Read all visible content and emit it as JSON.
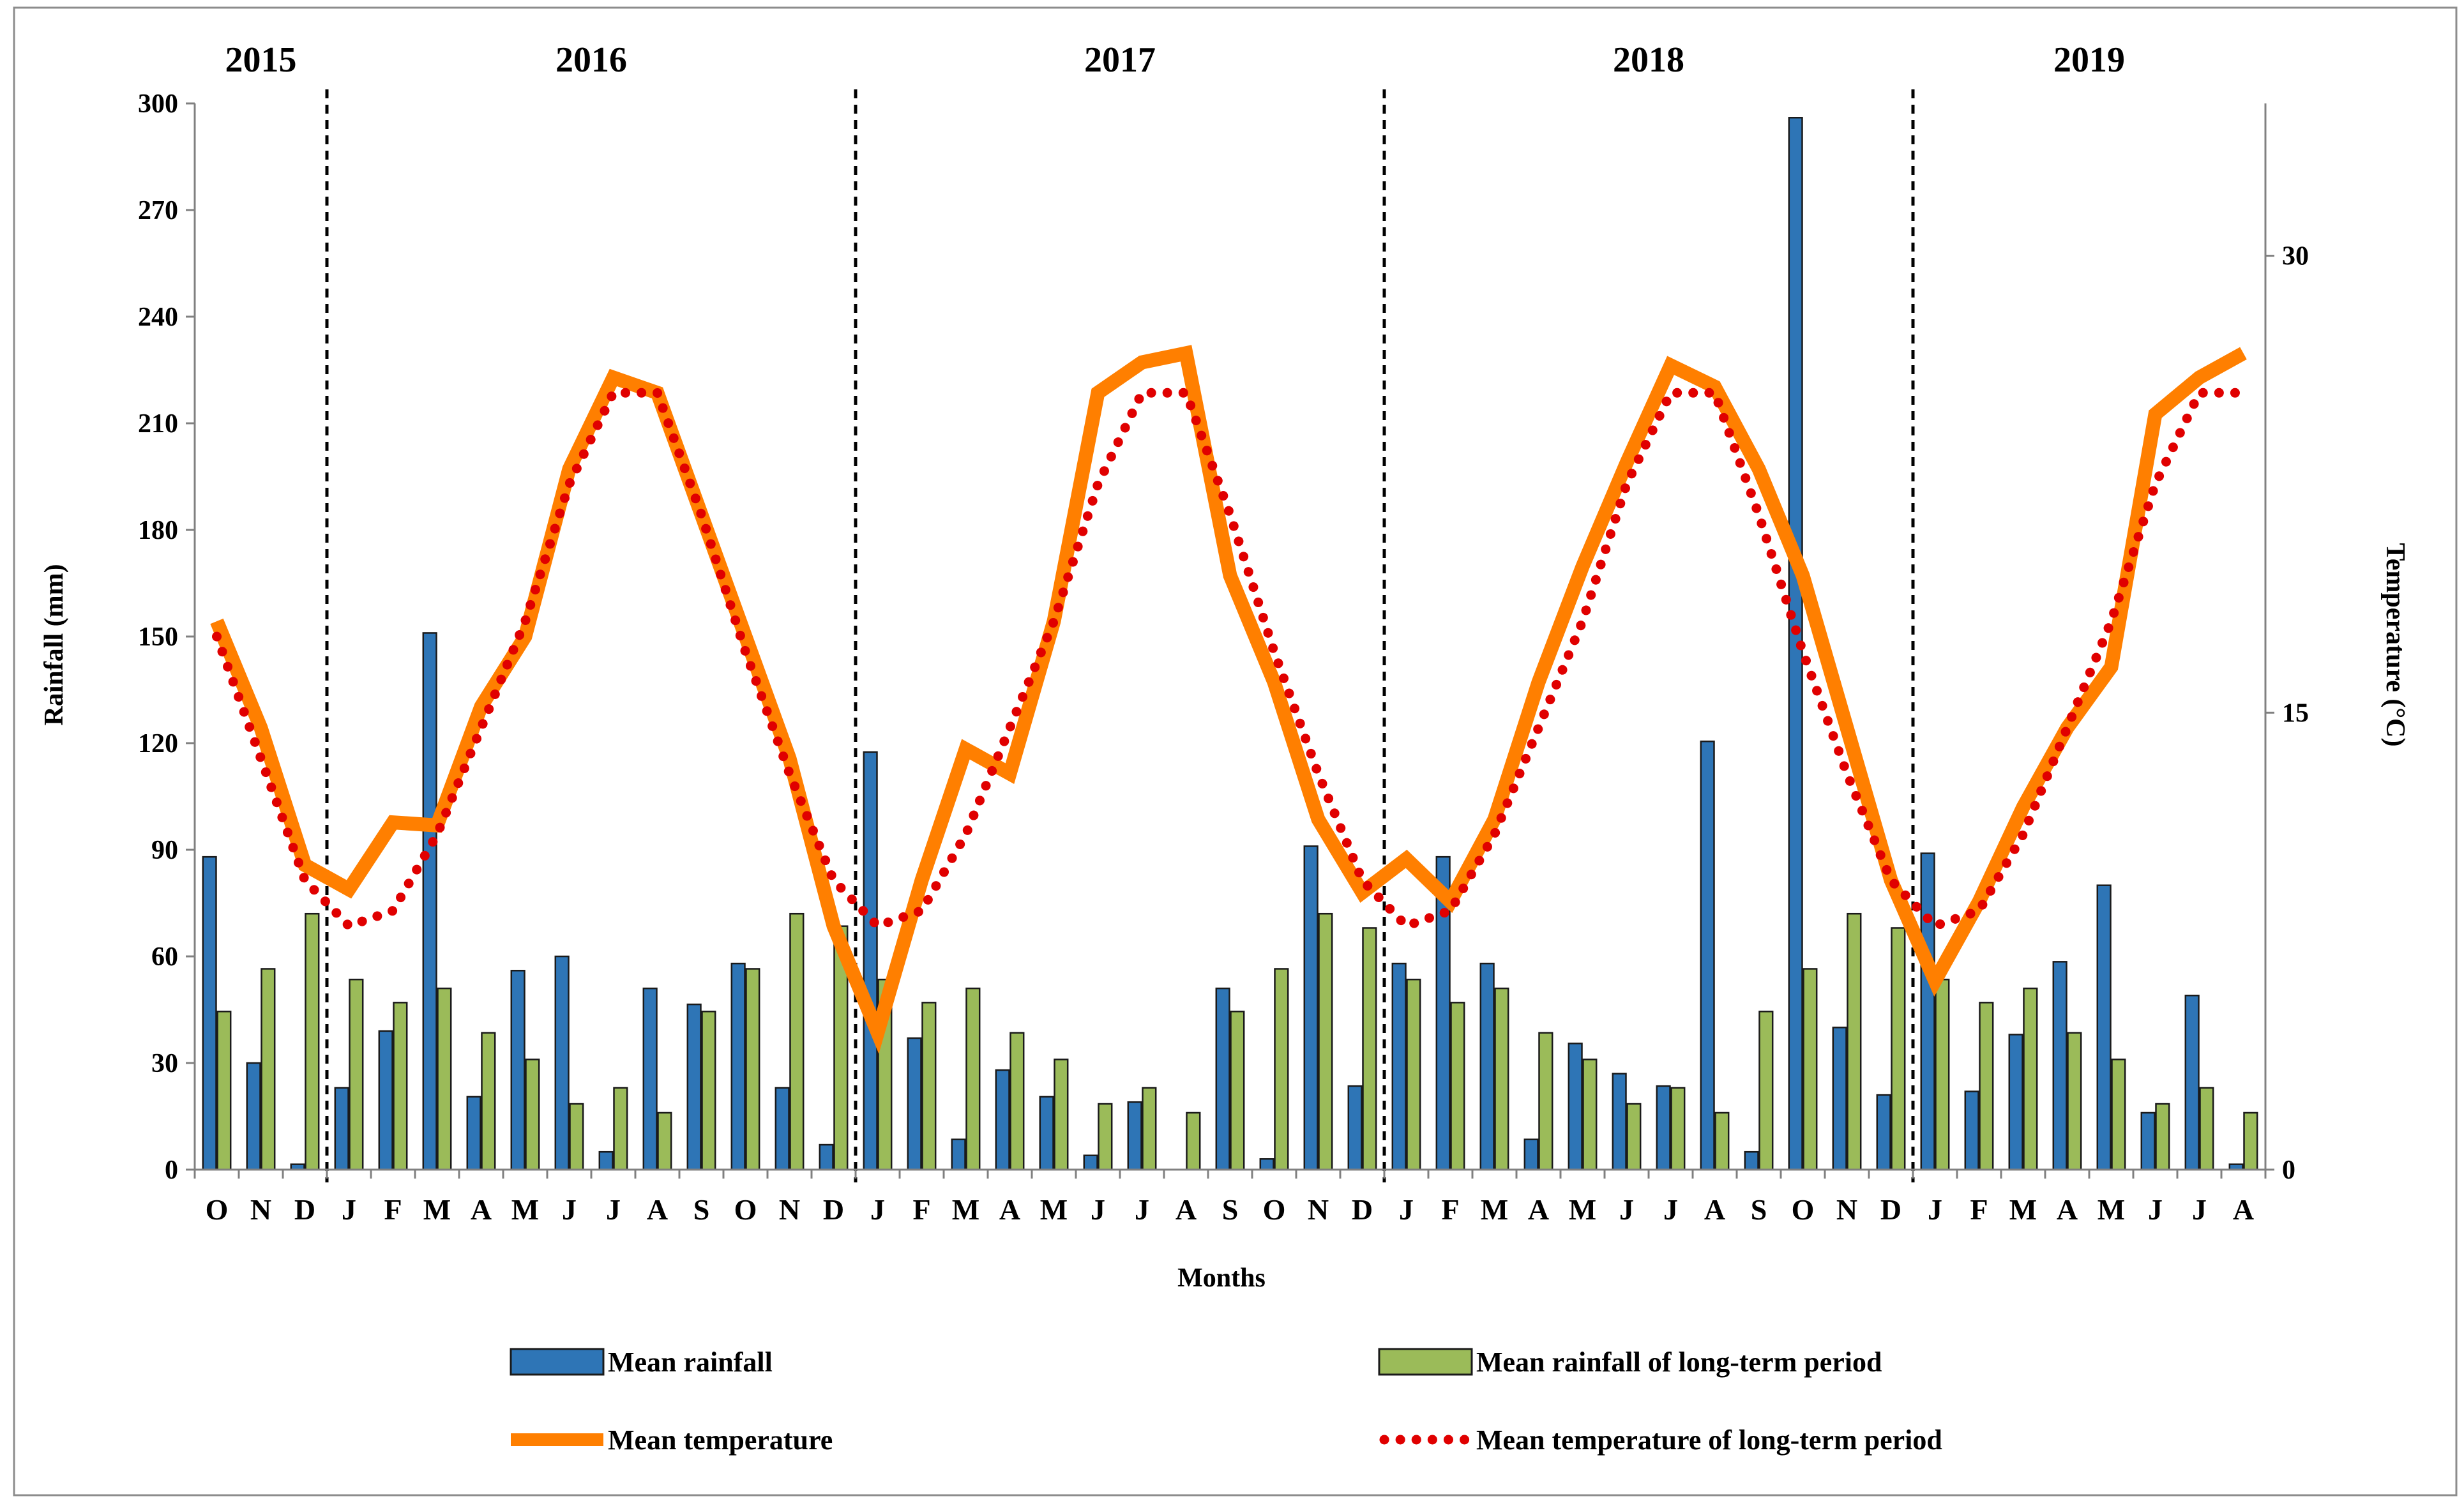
{
  "chart_data": {
    "type": "bar",
    "xlabel": "Months",
    "ylabel": "Rainfall  (mm)",
    "y2label": "Temperature  (°C)",
    "ylim": [
      0,
      300
    ],
    "y_ticks": [
      0,
      30,
      60,
      90,
      120,
      150,
      180,
      210,
      240,
      270,
      300
    ],
    "y2lim": [
      0,
      35
    ],
    "y2_ticks": [
      0,
      15,
      30
    ],
    "categories": [
      "O",
      "N",
      "D",
      "J",
      "F",
      "M",
      "A",
      "M",
      "J",
      "J",
      "A",
      "S",
      "O",
      "N",
      "D",
      "J",
      "F",
      "M",
      "A",
      "M",
      "J",
      "J",
      "A",
      "S",
      "O",
      "N",
      "D",
      "J",
      "F",
      "M",
      "A",
      "M",
      "J",
      "J",
      "A",
      "S",
      "O",
      "N",
      "D",
      "J",
      "F",
      "M",
      "A",
      "M",
      "J",
      "J",
      "A"
    ],
    "year_labels": [
      {
        "label": "2015",
        "start": 0,
        "end": 2
      },
      {
        "label": "2016",
        "start": 3,
        "end": 14
      },
      {
        "label": "2017",
        "start": 15,
        "end": 26
      },
      {
        "label": "2018",
        "start": 27,
        "end": 38
      },
      {
        "label": "2019",
        "start": 39,
        "end": 46
      }
    ],
    "year_dividers": [
      2.5,
      14.5,
      26.5,
      38.5
    ],
    "series": [
      {
        "name": "Mean rainfall",
        "type": "bar",
        "axis": "left",
        "color": "#2E75B6",
        "values": [
          88,
          30,
          1.5,
          23,
          39,
          151,
          20.5,
          56,
          60,
          5,
          51,
          46.5,
          58,
          23,
          7,
          117.5,
          37,
          8.5,
          28,
          20.5,
          4,
          19,
          0,
          51,
          3,
          91,
          23.5,
          58,
          88,
          58,
          8.5,
          35.5,
          27,
          23.5,
          120.5,
          5,
          296,
          40,
          21,
          89,
          22,
          38,
          58.5,
          80,
          16,
          49,
          1.5
        ]
      },
      {
        "name": "Mean rainfall of long-term period",
        "type": "bar",
        "axis": "left",
        "color": "#9BBB59",
        "values": [
          44.5,
          56.5,
          72,
          53.5,
          47,
          51,
          38.5,
          31,
          18.5,
          23,
          16,
          44.5,
          56.5,
          72,
          68.5,
          53.5,
          47,
          51,
          38.5,
          31,
          18.5,
          23,
          16,
          44.5,
          56.5,
          72,
          68,
          53.5,
          47,
          51,
          38.5,
          31,
          18.5,
          23,
          16,
          44.5,
          56.5,
          72,
          68,
          53.5,
          47,
          51,
          38.5,
          31,
          18.5,
          23,
          16
        ]
      },
      {
        "name": "Mean temperature",
        "type": "line",
        "axis": "right",
        "color": "#FF7F00",
        "values": [
          18,
          14.5,
          10,
          9.2,
          11.4,
          11.3,
          15.2,
          17.5,
          23,
          26,
          25.5,
          21.5,
          17.5,
          13.5,
          8,
          4.5,
          9.5,
          13.8,
          13,
          18,
          25.5,
          26.5,
          26.8,
          19.5,
          16,
          11.5,
          9.1,
          10.2,
          8.8,
          11.5,
          16,
          19.8,
          23.2,
          26.4,
          25.7,
          23,
          19.5,
          14.5,
          9.5,
          6.2,
          8.8,
          11.9,
          14.5,
          16.5,
          24.8,
          26,
          26.8
        ]
      },
      {
        "name": "Mean temperature of long-term period",
        "type": "line",
        "axis": "right",
        "color": "#E00000",
        "values": [
          17.5,
          13.5,
          9.5,
          8,
          8.5,
          11,
          14.5,
          18,
          22.5,
          25.5,
          25.5,
          21.5,
          17,
          13,
          9.5,
          8,
          8.5,
          11,
          14.5,
          18,
          22.5,
          25.5,
          25.5,
          21.5,
          17,
          13,
          9.5,
          8,
          8.5,
          11,
          14.5,
          18,
          22.5,
          25.5,
          25.5,
          21.5,
          17,
          13,
          9.5,
          8,
          8.5,
          11,
          14.5,
          18,
          22.5,
          25.5,
          25.5
        ]
      }
    ],
    "legend_position": "bottom"
  }
}
